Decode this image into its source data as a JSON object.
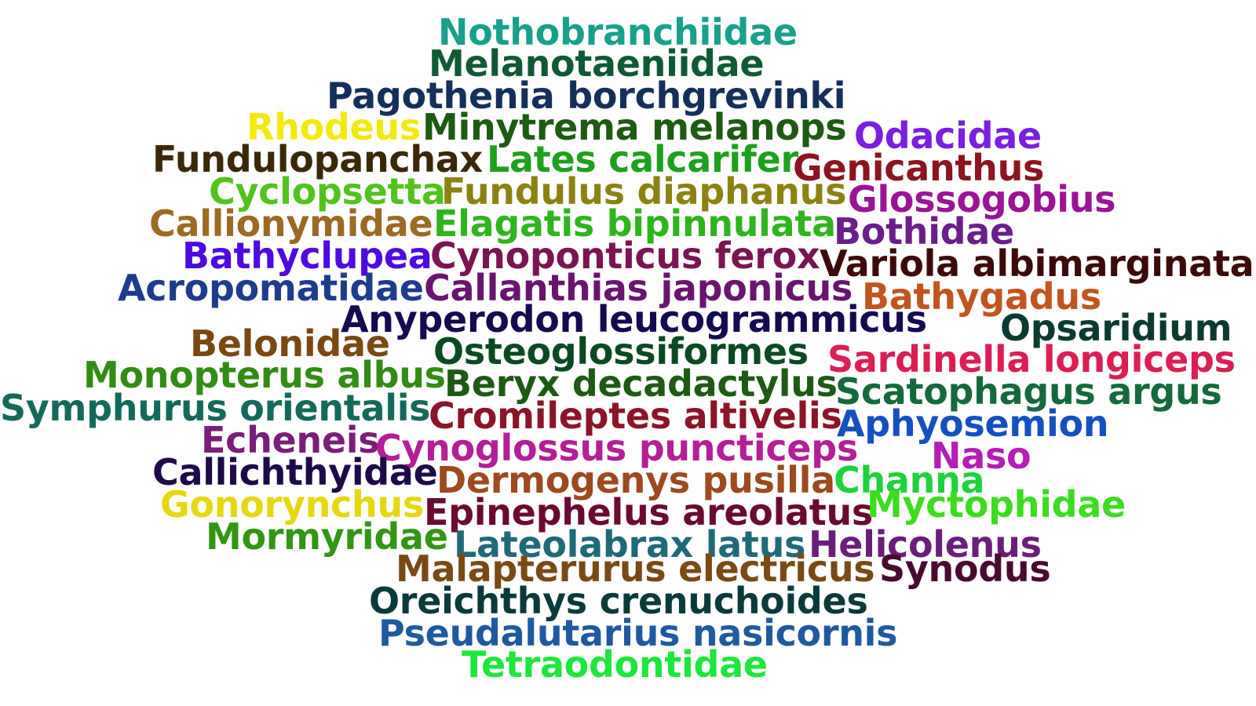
{
  "words": [
    {
      "text": "Nothobranchiidae",
      "color": "#18a08c"
    },
    {
      "text": "Melanotaeniidae",
      "color": "#0f5a35"
    },
    {
      "text": "Pagothenia borchgrevinki",
      "color": "#14305a"
    },
    {
      "text": "Rhodeus",
      "color": "#f2ea0e"
    },
    {
      "text": "Minytrema melanops",
      "color": "#1d5a12"
    },
    {
      "text": "Odacidae",
      "color": "#7a1ee0"
    },
    {
      "text": "Fundulopanchax",
      "color": "#3a2808"
    },
    {
      "text": "Lates calcarifer",
      "color": "#1ea01e"
    },
    {
      "text": "Genicanthus",
      "color": "#8c1420"
    },
    {
      "text": "Cyclopsetta",
      "color": "#52c21e"
    },
    {
      "text": "Fundulus diaphanus",
      "color": "#8c8214"
    },
    {
      "text": "Glossogobius",
      "color": "#9c1496"
    },
    {
      "text": "Callionymidae",
      "color": "#9c6a22"
    },
    {
      "text": "Elagatis bipinnulata",
      "color": "#30b41e"
    },
    {
      "text": "Bothidae",
      "color": "#6a1e8a"
    },
    {
      "text": "Bathyclupea",
      "color": "#4e0ae0"
    },
    {
      "text": "Cynoponticus ferox",
      "color": "#7a1452"
    },
    {
      "text": "Variola albimarginata",
      "color": "#3c0a0a"
    },
    {
      "text": "Acropomatidae",
      "color": "#1e3c8c"
    },
    {
      "text": "Callanthias japonicus",
      "color": "#6a1470"
    },
    {
      "text": "Bathygadus",
      "color": "#c0561e"
    },
    {
      "text": "Anyperodon leucogrammicus",
      "color": "#140a50"
    },
    {
      "text": "Opsaridium",
      "color": "#0a3a30"
    },
    {
      "text": "Belonidae",
      "color": "#7a4810"
    },
    {
      "text": "Osteoglossiformes",
      "color": "#0a4a22"
    },
    {
      "text": "Sardinella longiceps",
      "color": "#dc1e52"
    },
    {
      "text": "Monopterus albus",
      "color": "#328c14"
    },
    {
      "text": "Beryx decadactylus",
      "color": "#1e5a14"
    },
    {
      "text": "Scatophagus argus",
      "color": "#146a3c"
    },
    {
      "text": "Symphurus orientalis",
      "color": "#146a5a"
    },
    {
      "text": "Cromileptes altivelis",
      "color": "#8c1428"
    },
    {
      "text": "Aphyosemion",
      "color": "#1450c0"
    },
    {
      "text": "Echeneis",
      "color": "#7a1e7a"
    },
    {
      "text": "Cynoglossus puncticeps",
      "color": "#b41e96"
    },
    {
      "text": "Naso",
      "color": "#b41eb4"
    },
    {
      "text": "Callichthyidae",
      "color": "#1e0a4a"
    },
    {
      "text": "Dermogenys pusilla",
      "color": "#9c4a1e"
    },
    {
      "text": "Channa",
      "color": "#1ed23c"
    },
    {
      "text": "Gonorynchus",
      "color": "#e6d80e"
    },
    {
      "text": "Epinephelus areolatus",
      "color": "#6a0a30"
    },
    {
      "text": "Myctophidae",
      "color": "#3cdc1e"
    },
    {
      "text": "Mormyridae",
      "color": "#329614"
    },
    {
      "text": "Lateolabrax latus",
      "color": "#1e6a78"
    },
    {
      "text": "Helicolenus",
      "color": "#6a1e7a"
    },
    {
      "text": "Malapterurus electricus",
      "color": "#7a4a14"
    },
    {
      "text": "Synodus",
      "color": "#4a0a30"
    },
    {
      "text": "Oreichthys crenuchoides",
      "color": "#0a3a3a"
    },
    {
      "text": "Pseudalutarius nasicornis",
      "color": "#1e5aa0"
    },
    {
      "text": "Tetraodontidae",
      "color": "#1ee63c"
    }
  ]
}
